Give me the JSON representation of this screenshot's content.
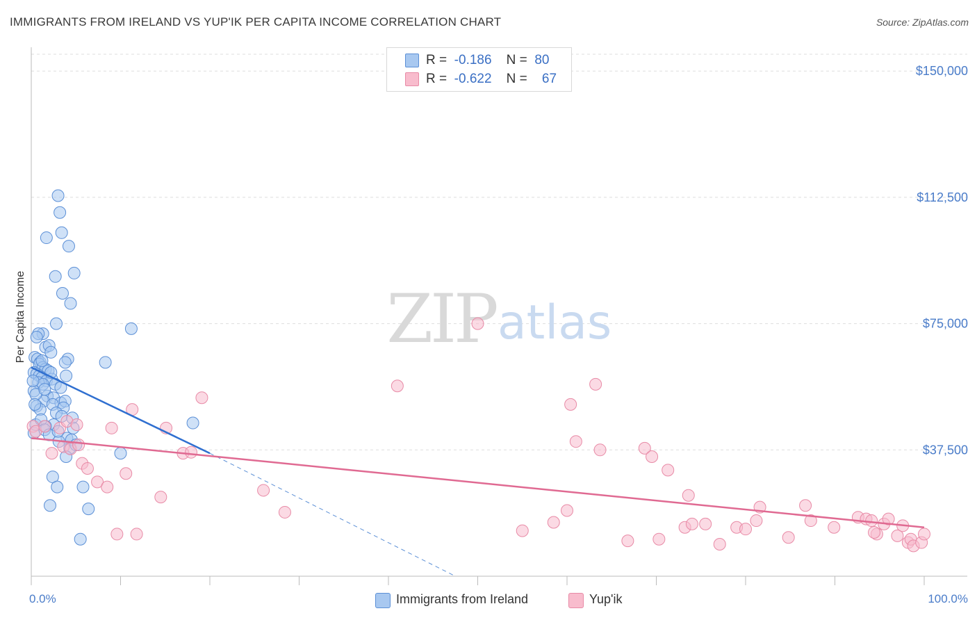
{
  "header": {
    "title": "IMMIGRANTS FROM IRELAND VS YUP'IK PER CAPITA INCOME CORRELATION CHART",
    "source": "Source: ZipAtlas.com"
  },
  "watermark": {
    "zip": "ZIP",
    "atlas": "atlas"
  },
  "legend_top": {
    "rows": [
      {
        "r_label": "R =",
        "r_value": "-0.186",
        "n_label": "N =",
        "n_value": "80"
      },
      {
        "r_label": "R =",
        "r_value": "-0.622",
        "n_label": "N =",
        "n_value": "67"
      }
    ]
  },
  "legend_bottom": {
    "items": [
      {
        "label": "Immigrants from Ireland"
      },
      {
        "label": "Yup'ik"
      }
    ]
  },
  "colors": {
    "blue_fill": "#a8c8f0",
    "blue_stroke": "#5b8fd6",
    "blue_line": "#2f6fd0",
    "pink_fill": "#f8bccd",
    "pink_stroke": "#e88aa6",
    "pink_line": "#e06a92",
    "grid": "#dddddd",
    "axis_label": "#4a7cc9"
  },
  "chart_data": {
    "type": "scatter",
    "title": "IMMIGRANTS FROM IRELAND VS YUP'IK PER CAPITA INCOME CORRELATION CHART",
    "xlabel": "",
    "ylabel": "Per Capita Income",
    "xlim": [
      0,
      100
    ],
    "ylim": [
      0,
      155000
    ],
    "x_tick_labels": [
      "0.0%",
      "100.0%"
    ],
    "y_ticks": [
      37500,
      75000,
      112500,
      150000
    ],
    "y_tick_labels": [
      "$37,500",
      "$75,000",
      "$112,500",
      "$150,000"
    ],
    "grid": true,
    "series": [
      {
        "name": "Immigrants from Ireland",
        "r": -0.186,
        "n": 80,
        "points": [
          [
            3.0,
            113000
          ],
          [
            3.2,
            108000
          ],
          [
            3.4,
            102000
          ],
          [
            1.7,
            100500
          ],
          [
            4.2,
            98000
          ],
          [
            2.7,
            89000
          ],
          [
            4.8,
            90000
          ],
          [
            3.5,
            84000
          ],
          [
            4.4,
            81000
          ],
          [
            2.8,
            75000
          ],
          [
            11.2,
            73500
          ],
          [
            1.3,
            72000
          ],
          [
            0.8,
            72000
          ],
          [
            0.6,
            71000
          ],
          [
            1.6,
            68000
          ],
          [
            2.0,
            68500
          ],
          [
            2.2,
            66500
          ],
          [
            0.4,
            65000
          ],
          [
            0.7,
            64500
          ],
          [
            1.0,
            63500
          ],
          [
            0.9,
            63000
          ],
          [
            1.3,
            62000
          ],
          [
            1.6,
            61500
          ],
          [
            1.9,
            61000
          ],
          [
            0.3,
            60500
          ],
          [
            0.6,
            60000
          ],
          [
            0.9,
            59500
          ],
          [
            1.2,
            59000
          ],
          [
            1.7,
            58000
          ],
          [
            2.3,
            58500
          ],
          [
            0.8,
            57500
          ],
          [
            1.3,
            57000
          ],
          [
            2.7,
            57000
          ],
          [
            3.3,
            56000
          ],
          [
            4.1,
            64500
          ],
          [
            3.8,
            63500
          ],
          [
            3.9,
            59500
          ],
          [
            8.3,
            63500
          ],
          [
            0.3,
            55000
          ],
          [
            1.8,
            53500
          ],
          [
            2.5,
            53000
          ],
          [
            3.3,
            51500
          ],
          [
            3.8,
            52000
          ],
          [
            1.4,
            52000
          ],
          [
            2.4,
            51000
          ],
          [
            0.6,
            50500
          ],
          [
            1.0,
            49500
          ],
          [
            3.6,
            50000
          ],
          [
            2.8,
            48500
          ],
          [
            3.4,
            47500
          ],
          [
            4.6,
            47000
          ],
          [
            2.5,
            45000
          ],
          [
            1.6,
            44500
          ],
          [
            4.7,
            44000
          ],
          [
            4.0,
            41000
          ],
          [
            4.5,
            40500
          ],
          [
            3.1,
            40000
          ],
          [
            4.3,
            38000
          ],
          [
            0.3,
            42500
          ],
          [
            10.0,
            36500
          ],
          [
            3.9,
            35500
          ],
          [
            18.1,
            45500
          ],
          [
            2.4,
            29500
          ],
          [
            2.9,
            26500
          ],
          [
            5.8,
            26500
          ],
          [
            2.1,
            21000
          ],
          [
            6.4,
            20000
          ],
          [
            5.5,
            11000
          ],
          [
            0.5,
            45000
          ],
          [
            1.1,
            46500
          ],
          [
            1.5,
            43500
          ],
          [
            2.0,
            42000
          ],
          [
            0.5,
            54000
          ],
          [
            1.5,
            55500
          ],
          [
            3.0,
            43000
          ],
          [
            5.0,
            39000
          ],
          [
            0.2,
            58000
          ],
          [
            2.2,
            60500
          ],
          [
            1.2,
            64000
          ],
          [
            0.4,
            51000
          ]
        ],
        "trend": {
          "x": [
            0,
            20
          ],
          "y": [
            62000,
            36500
          ]
        },
        "trend_extrapolated": {
          "x": [
            20,
            47.5
          ],
          "y": [
            36500,
            0
          ]
        }
      },
      {
        "name": "Yup'ik",
        "r": -0.622,
        "n": 67,
        "points": [
          [
            0.2,
            44500
          ],
          [
            0.5,
            43000
          ],
          [
            1.5,
            44500
          ],
          [
            3.2,
            44000
          ],
          [
            3.6,
            38500
          ],
          [
            4.0,
            46000
          ],
          [
            4.4,
            37800
          ],
          [
            5.1,
            45000
          ],
          [
            5.3,
            39000
          ],
          [
            2.3,
            36500
          ],
          [
            5.7,
            33500
          ],
          [
            6.3,
            32000
          ],
          [
            7.4,
            28000
          ],
          [
            8.5,
            26500
          ],
          [
            9.0,
            44000
          ],
          [
            10.6,
            30500
          ],
          [
            11.3,
            49500
          ],
          [
            9.6,
            12500
          ],
          [
            11.8,
            12500
          ],
          [
            14.5,
            23500
          ],
          [
            15.1,
            44000
          ],
          [
            17.0,
            36500
          ],
          [
            17.9,
            36800
          ],
          [
            19.1,
            53000
          ],
          [
            26.0,
            25500
          ],
          [
            28.4,
            19000
          ],
          [
            41.0,
            56500
          ],
          [
            50.0,
            75000
          ],
          [
            55.0,
            13500
          ],
          [
            58.5,
            16000
          ],
          [
            60.0,
            19500
          ],
          [
            60.4,
            51000
          ],
          [
            61.0,
            40000
          ],
          [
            63.2,
            57000
          ],
          [
            63.7,
            37500
          ],
          [
            66.8,
            10500
          ],
          [
            68.7,
            38000
          ],
          [
            69.5,
            35500
          ],
          [
            70.3,
            11000
          ],
          [
            71.3,
            31500
          ],
          [
            73.2,
            14500
          ],
          [
            74.0,
            15500
          ],
          [
            73.6,
            24000
          ],
          [
            75.5,
            15500
          ],
          [
            77.1,
            9500
          ],
          [
            79.0,
            14500
          ],
          [
            80.0,
            14000
          ],
          [
            81.2,
            16500
          ],
          [
            81.6,
            20500
          ],
          [
            84.8,
            11500
          ],
          [
            86.7,
            21000
          ],
          [
            87.3,
            16500
          ],
          [
            89.9,
            14500
          ],
          [
            92.6,
            17500
          ],
          [
            93.5,
            17000
          ],
          [
            94.1,
            16500
          ],
          [
            94.7,
            12500
          ],
          [
            94.4,
            13000
          ],
          [
            95.5,
            15500
          ],
          [
            96.0,
            17000
          ],
          [
            97.0,
            12000
          ],
          [
            97.6,
            15000
          ],
          [
            98.2,
            10000
          ],
          [
            98.5,
            11000
          ],
          [
            98.8,
            9000
          ],
          [
            99.7,
            10000
          ],
          [
            100.0,
            12500
          ]
        ],
        "trend": {
          "x": [
            0,
            100
          ],
          "y": [
            41000,
            14500
          ]
        }
      }
    ]
  }
}
